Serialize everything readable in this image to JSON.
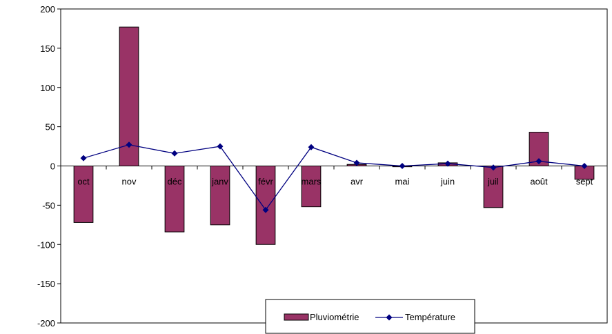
{
  "chart_data": {
    "type": "bar",
    "categories": [
      "oct",
      "nov",
      "déc",
      "janv",
      "févr",
      "mars",
      "avr",
      "mai",
      "juin",
      "juil",
      "août",
      "sept"
    ],
    "series": [
      {
        "name": "Pluviométrie",
        "type": "bar",
        "color": "#993366",
        "values": [
          -72,
          177,
          -84,
          -75,
          -100,
          -52,
          2,
          -1,
          4,
          -53,
          43,
          -17
        ]
      },
      {
        "name": "Température",
        "type": "line",
        "color": "#000080",
        "values": [
          10,
          27,
          16,
          25,
          -56,
          24,
          4,
          0,
          3,
          -2,
          6,
          0
        ]
      }
    ],
    "yticks": [
      200,
      150,
      100,
      50,
      0,
      -50,
      -100,
      -150,
      -200
    ],
    "ylim": [
      -200,
      200
    ],
    "legend_position": "bottom-center",
    "grid": false
  }
}
